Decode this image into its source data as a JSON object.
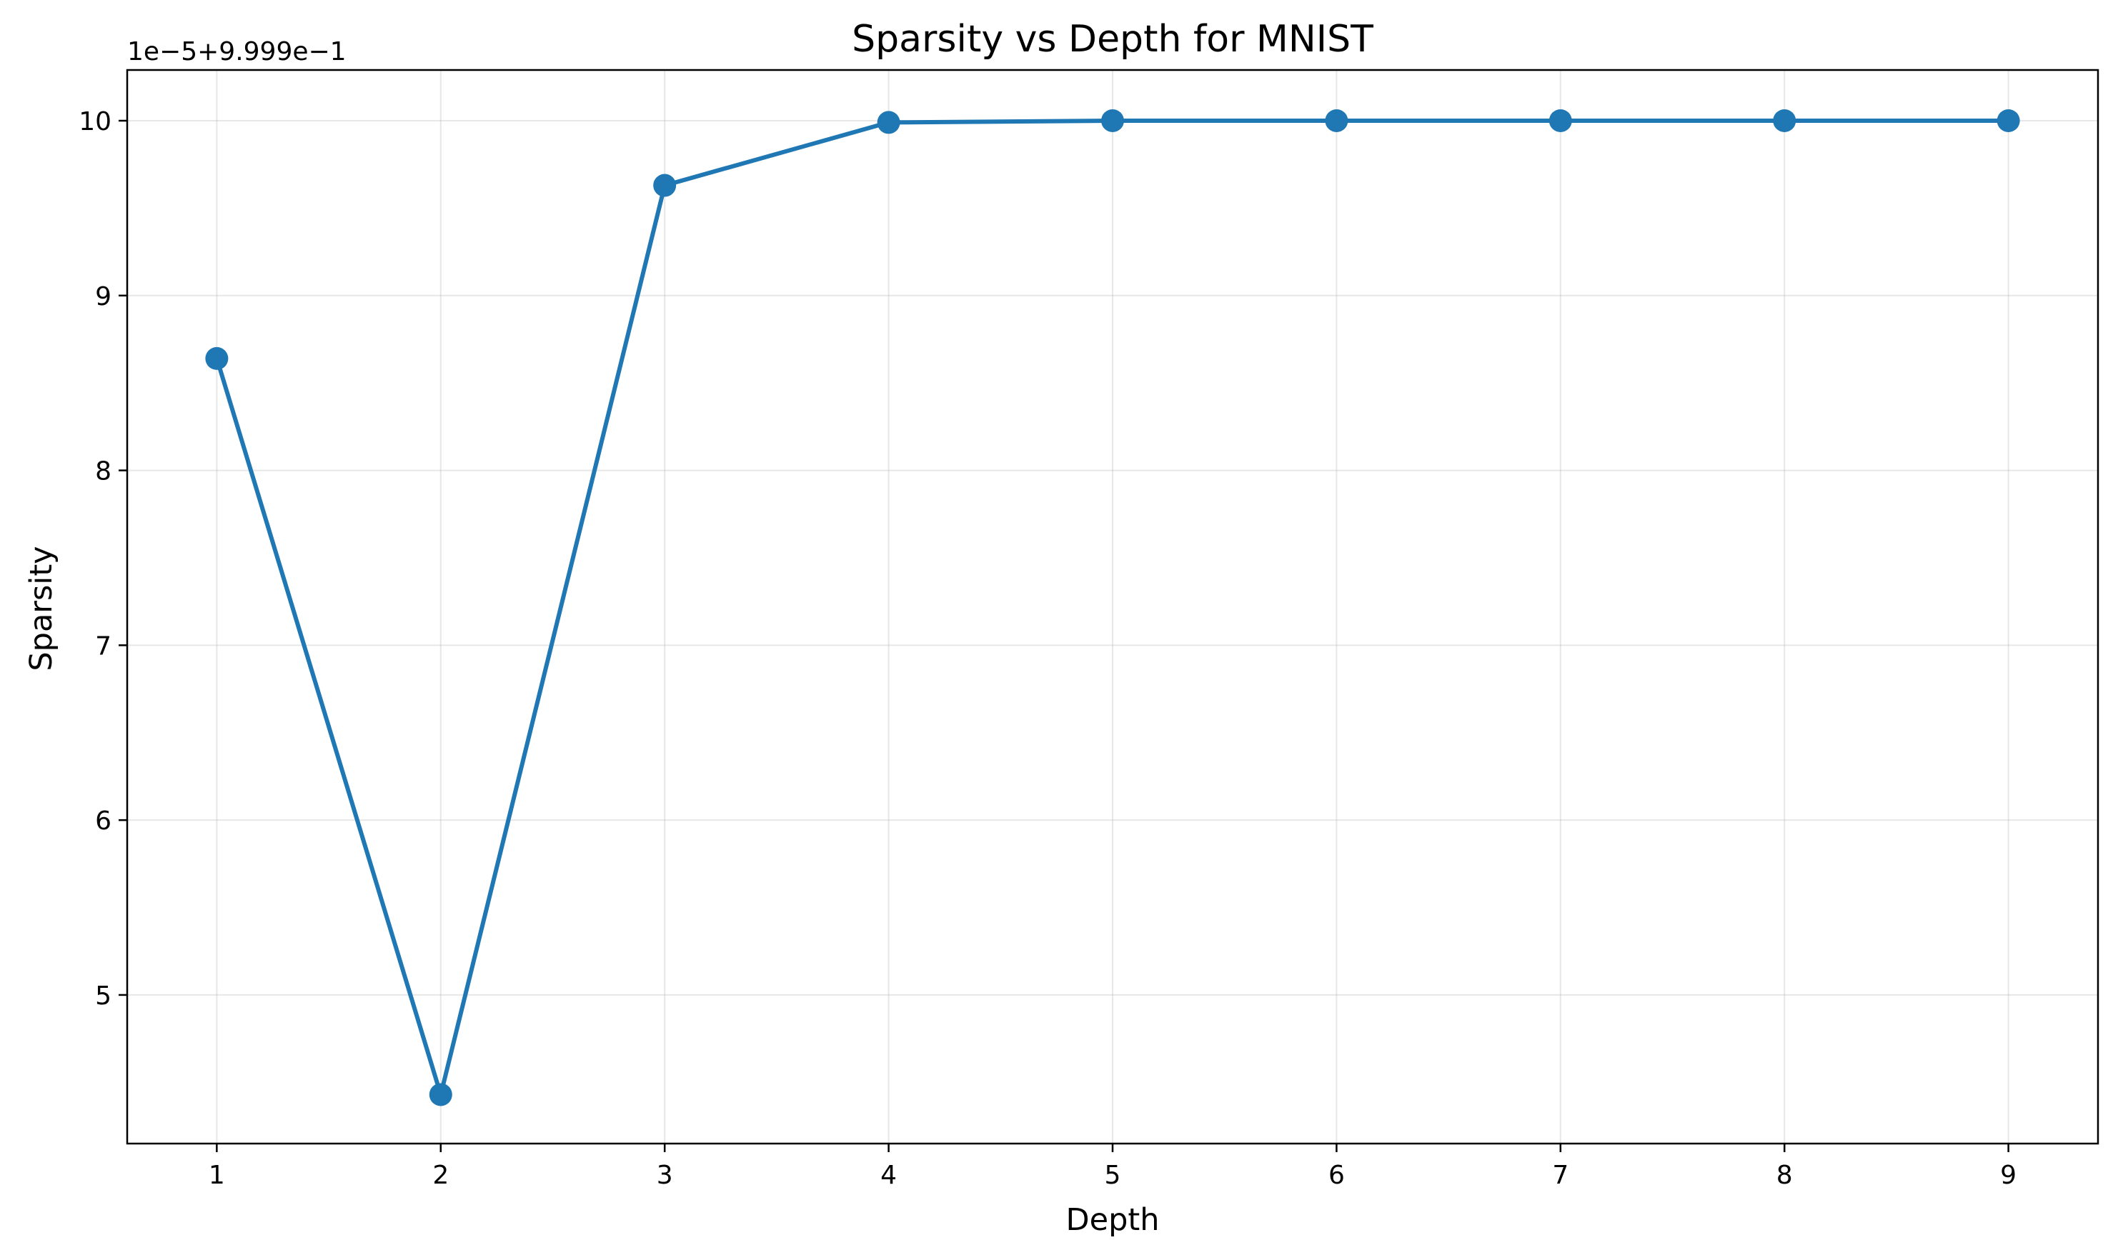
{
  "chart_data": {
    "type": "line",
    "title": "Sparsity vs Depth for MNIST",
    "xlabel": "Depth",
    "ylabel": "Sparsity",
    "y_offset_label": "1e−5+9.999e−1",
    "x": [
      1,
      2,
      3,
      4,
      5,
      6,
      7,
      8,
      9
    ],
    "xticks": [
      "1",
      "2",
      "3",
      "4",
      "5",
      "6",
      "7",
      "8",
      "9"
    ],
    "xlim": [
      0.6,
      9.4
    ],
    "yticks": [
      "5",
      "6",
      "7",
      "8",
      "9",
      "10"
    ],
    "ylim": [
      4.15,
      10.29
    ],
    "grid": true,
    "series": [
      {
        "values": [
          8.64,
          4.43,
          9.63,
          9.99,
          10.0,
          10.0,
          10.0,
          10.0,
          10.0
        ],
        "color": "#1f77b4",
        "marker": "circle"
      }
    ]
  }
}
